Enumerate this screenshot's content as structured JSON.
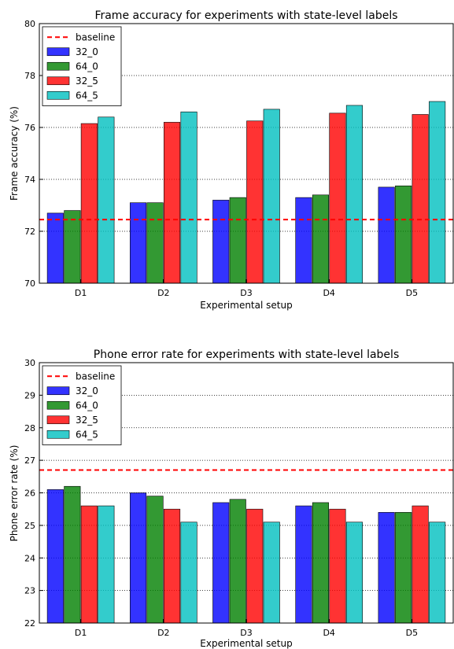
{
  "chart_data": [
    {
      "type": "bar",
      "title": "Frame accuracy for experiments with state-level labels",
      "xlabel": "Experimental setup",
      "ylabel": "Frame accuracy (%)",
      "categories": [
        "D1",
        "D2",
        "D3",
        "D4",
        "D5"
      ],
      "ylim": [
        70,
        80
      ],
      "yticks": [
        70,
        72,
        74,
        76,
        78,
        80
      ],
      "grid": "horizontal dotted",
      "legend_position": "top-left",
      "baseline": {
        "name": "baseline",
        "value": 72.45,
        "color": "#ff0000"
      },
      "series": [
        {
          "name": "32_0",
          "color": "#0000ff",
          "values": [
            72.7,
            73.1,
            73.2,
            73.3,
            73.7
          ]
        },
        {
          "name": "64_0",
          "color": "#008000",
          "values": [
            72.8,
            73.1,
            73.3,
            73.4,
            73.75
          ]
        },
        {
          "name": "32_5",
          "color": "#ff0000",
          "values": [
            76.15,
            76.2,
            76.25,
            76.55,
            76.5
          ]
        },
        {
          "name": "64_5",
          "color": "#00bfbf",
          "values": [
            76.4,
            76.6,
            76.7,
            76.85,
            77.0
          ]
        }
      ]
    },
    {
      "type": "bar",
      "title": "Phone error rate for experiments with state-level labels",
      "xlabel": "Experimental setup",
      "ylabel": "Phone error rate (%)",
      "categories": [
        "D1",
        "D2",
        "D3",
        "D4",
        "D5"
      ],
      "ylim": [
        22,
        30
      ],
      "yticks": [
        22,
        23,
        24,
        25,
        26,
        27,
        28,
        29,
        30
      ],
      "grid": "horizontal dotted",
      "legend_position": "top-left",
      "baseline": {
        "name": "baseline",
        "value": 26.7,
        "color": "#ff0000"
      },
      "series": [
        {
          "name": "32_0",
          "color": "#0000ff",
          "values": [
            26.1,
            26.0,
            25.7,
            25.6,
            25.4
          ]
        },
        {
          "name": "64_0",
          "color": "#008000",
          "values": [
            26.2,
            25.9,
            25.8,
            25.7,
            25.4
          ]
        },
        {
          "name": "32_5",
          "color": "#ff0000",
          "values": [
            25.6,
            25.5,
            25.5,
            25.5,
            25.6
          ]
        },
        {
          "name": "64_5",
          "color": "#00bfbf",
          "values": [
            25.6,
            25.1,
            25.1,
            25.1,
            25.1
          ]
        }
      ]
    }
  ]
}
